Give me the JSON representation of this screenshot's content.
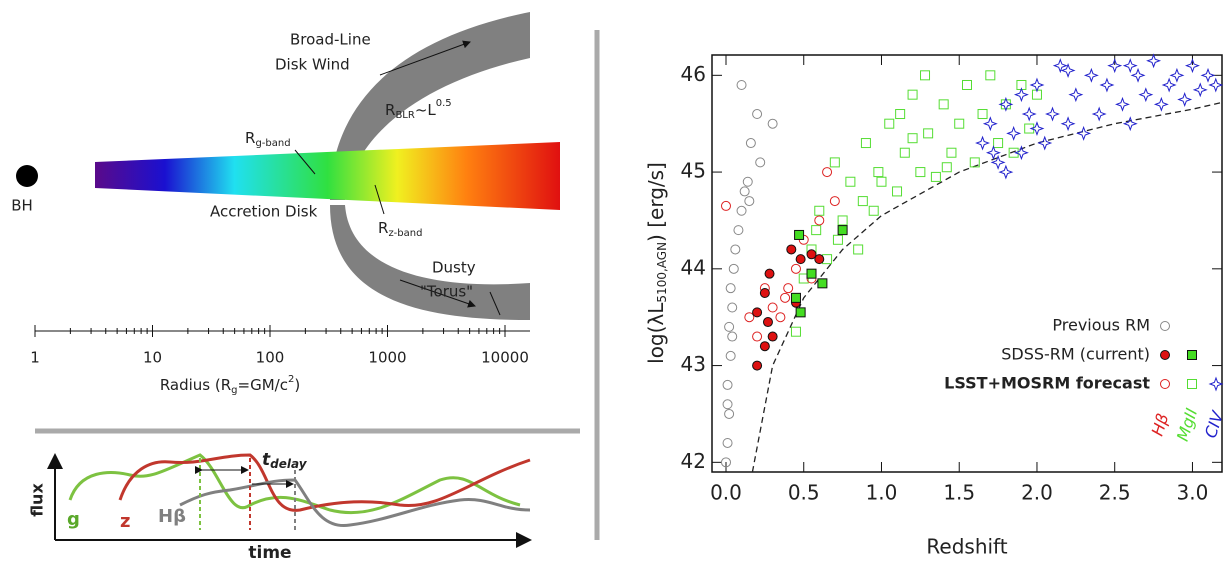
{
  "diagram": {
    "bh": "BH",
    "accretion_disk": "Accretion Disk",
    "wind": [
      "Broad-Line",
      "Disk Wind"
    ],
    "r_blr": [
      "R",
      "BLR",
      "~L",
      "0.5"
    ],
    "r_g": [
      "R",
      "g-band"
    ],
    "r_z": [
      "R",
      "z-band"
    ],
    "torus": [
      "Dusty",
      "\"Torus\""
    ],
    "radius_axis": {
      "ticks": [
        1,
        10,
        100,
        1000,
        10000
      ],
      "label": [
        "Radius (R",
        "g",
        "=GM/c",
        "2",
        ")"
      ]
    }
  },
  "lightcurve": {
    "y_label": "flux",
    "x_label": "time",
    "curves": [
      "g",
      "z",
      "Hβ"
    ],
    "delay": [
      "t",
      "delay"
    ]
  },
  "chart_data": {
    "type": "scatter",
    "x_label": "Redshift",
    "y_label": [
      "log(λL",
      "5100,AGN",
      ") [erg/s]"
    ],
    "xlim": [
      -0.09,
      3.19
    ],
    "ylim": [
      41.9,
      46.21
    ],
    "xticks": [
      {
        "value": 0,
        "label": "0.0"
      },
      {
        "value": 0.5,
        "label": "0.5"
      },
      {
        "value": 1,
        "label": "1.0"
      },
      {
        "value": 1.5,
        "label": "1.5"
      },
      {
        "value": 2,
        "label": "2.0"
      },
      {
        "value": 2.5,
        "label": "2.5"
      },
      {
        "value": 3,
        "label": "3.0"
      }
    ],
    "yticks": [
      42,
      43,
      44,
      45,
      46
    ],
    "legend": {
      "rows": [
        "Previous RM",
        "SDSS-RM (current)",
        "LSST+MOSRM forecast"
      ],
      "columns": [
        "Hβ",
        "MgII",
        "CIV"
      ],
      "column_colors": [
        "#dd2222",
        "#55dd33",
        "#2222cc"
      ]
    },
    "series": [
      {
        "color": "#222222",
        "dashed": true,
        "x": [
          0.17,
          0.3,
          0.5,
          0.75,
          1.0,
          1.5,
          2.0,
          2.5,
          3.0,
          3.19
        ],
        "values": [
          41.9,
          43.0,
          43.7,
          44.2,
          44.55,
          45.0,
          45.3,
          45.5,
          45.65,
          45.72
        ]
      },
      {
        "name": "Previous RM",
        "line": "Hβ",
        "marker": "circle",
        "filled": false,
        "color": "#888888",
        "x": [
          0.0,
          0.01,
          0.02,
          0.01,
          0.03,
          0.02,
          0.04,
          0.03,
          0.05,
          0.06,
          0.08,
          0.1,
          0.12,
          0.15,
          0.14,
          0.16,
          0.2,
          0.22,
          0.3,
          0.1,
          0.01,
          0.04
        ],
        "values": [
          42.0,
          42.2,
          42.5,
          42.8,
          43.1,
          43.4,
          43.6,
          43.8,
          44.0,
          44.2,
          44.4,
          44.6,
          44.8,
          44.7,
          44.9,
          45.3,
          45.6,
          45.1,
          45.5,
          45.9,
          42.6,
          43.3
        ]
      },
      {
        "name": "LSST+MOSRM forecast",
        "line": "MgII",
        "marker": "square",
        "filled": false,
        "color": "#55dd33",
        "x": [
          0.45,
          0.5,
          0.55,
          0.6,
          0.65,
          0.7,
          0.75,
          0.8,
          0.85,
          0.9,
          0.95,
          1.0,
          1.05,
          1.1,
          1.15,
          1.2,
          1.25,
          1.3,
          1.35,
          1.4,
          1.45,
          1.5,
          1.55,
          1.6,
          1.65,
          1.7,
          1.75,
          1.8,
          1.85,
          1.9,
          1.95,
          2.0,
          1.2,
          0.98,
          1.42,
          1.28,
          0.88,
          1.12,
          0.58,
          0.72
        ],
        "values": [
          43.35,
          43.9,
          44.2,
          44.6,
          44.1,
          45.1,
          44.5,
          44.9,
          44.2,
          45.3,
          44.6,
          44.9,
          45.5,
          44.8,
          45.2,
          45.8,
          45.0,
          45.4,
          44.95,
          45.7,
          45.2,
          45.5,
          45.9,
          45.1,
          45.6,
          46.0,
          45.3,
          45.7,
          45.2,
          45.9,
          45.45,
          45.8,
          45.35,
          45.0,
          45.05,
          46.0,
          44.7,
          45.6,
          44.4,
          44.3
        ]
      },
      {
        "name": "LSST+MOSRM forecast",
        "line": "CIV",
        "marker": "star",
        "filled": false,
        "color": "#2222cc",
        "x": [
          1.65,
          1.7,
          1.75,
          1.8,
          1.85,
          1.9,
          1.95,
          2.0,
          2.05,
          2.1,
          2.15,
          2.2,
          2.25,
          2.3,
          2.35,
          2.4,
          2.45,
          2.5,
          2.55,
          2.6,
          2.65,
          2.7,
          2.75,
          2.8,
          2.85,
          2.9,
          2.95,
          3.0,
          3.05,
          3.1,
          3.15,
          1.8,
          1.9,
          2.0,
          1.72,
          2.6,
          2.2
        ],
        "values": [
          45.3,
          45.5,
          45.1,
          45.7,
          45.4,
          45.2,
          45.6,
          45.9,
          45.3,
          45.6,
          46.1,
          45.5,
          45.8,
          45.4,
          46.0,
          45.6,
          45.9,
          46.1,
          45.7,
          45.5,
          46.0,
          45.8,
          46.15,
          45.7,
          45.9,
          46.0,
          45.75,
          46.1,
          45.85,
          46.0,
          45.9,
          45.0,
          45.8,
          45.45,
          45.2,
          46.1,
          46.05
        ]
      },
      {
        "name": "LSST+MOSRM forecast",
        "line": "Hβ",
        "marker": "circle",
        "filled": false,
        "color": "#dd2222",
        "x": [
          0.0,
          0.15,
          0.2,
          0.3,
          0.35,
          0.4,
          0.5,
          0.6,
          0.45,
          0.55,
          0.7,
          0.65,
          0.38,
          0.25
        ],
        "values": [
          44.65,
          43.5,
          43.3,
          43.6,
          43.5,
          43.8,
          44.3,
          44.5,
          44.0,
          43.9,
          44.7,
          45.0,
          43.7,
          43.8
        ]
      },
      {
        "name": "SDSS-RM (current)",
        "line": "Hβ",
        "marker": "circle",
        "filled": true,
        "color": "#dd1111",
        "x": [
          0.2,
          0.2,
          0.25,
          0.27,
          0.28,
          0.3,
          0.45,
          0.48,
          0.55,
          0.6,
          0.42,
          0.25
        ],
        "values": [
          43.0,
          43.55,
          43.75,
          43.45,
          43.95,
          43.3,
          43.65,
          44.1,
          44.15,
          44.1,
          44.2,
          43.2
        ]
      },
      {
        "name": "SDSS-RM (current)",
        "line": "MgII",
        "marker": "square",
        "filled": true,
        "color": "#44dd22",
        "x": [
          0.45,
          0.47,
          0.48,
          0.55,
          0.62,
          0.75
        ],
        "values": [
          43.7,
          44.35,
          43.55,
          43.95,
          43.85,
          44.4
        ]
      }
    ]
  }
}
